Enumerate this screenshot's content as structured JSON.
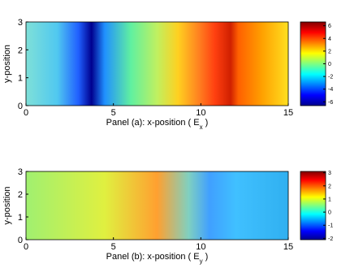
{
  "chart_data": [
    {
      "type": "heatmap",
      "ylabel": "y-position",
      "xlabel": {
        "text": "Panel (a): x-position ( E",
        "subscript": "x",
        "suffix": " )"
      },
      "xlim": [
        0,
        15
      ],
      "xticks": [
        0,
        5,
        10,
        15
      ],
      "ylim": [
        0,
        3
      ],
      "yticks": [
        0,
        1,
        2,
        3
      ],
      "colormap": "jet",
      "colorbar": {
        "lim": [
          -6.6,
          6.6
        ],
        "ticks": [
          -6,
          -4,
          -2,
          0,
          2,
          4,
          6
        ]
      }
    },
    {
      "type": "heatmap",
      "ylabel": "y-position",
      "xlabel": {
        "text": "Panel (b): x-position ( E",
        "subscript": "y",
        "suffix": " )"
      },
      "xlim": [
        0,
        15
      ],
      "xticks": [
        0,
        5,
        10,
        15
      ],
      "ylim": [
        0,
        3
      ],
      "yticks": [
        0,
        1,
        2,
        3
      ],
      "colormap": "jet",
      "colorbar": {
        "lim": [
          -2.1,
          3.1
        ],
        "ticks": [
          -2,
          -1,
          0,
          1,
          2,
          3
        ]
      }
    }
  ]
}
